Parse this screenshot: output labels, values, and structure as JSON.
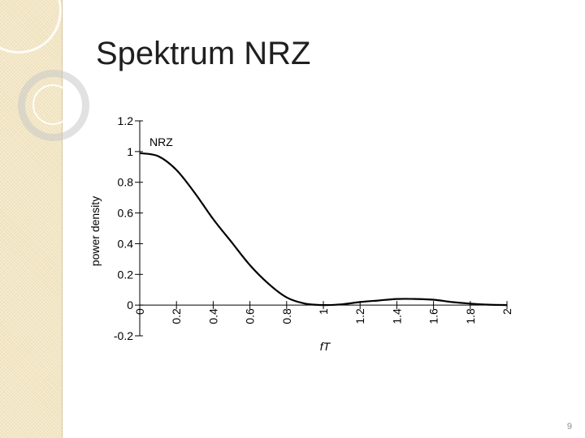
{
  "slide": {
    "title": "Spektrum NRZ",
    "page_number": "9"
  },
  "chart_data": {
    "type": "line",
    "xlabel": "fT",
    "ylabel": "power density",
    "xlim": [
      0,
      2
    ],
    "ylim": [
      -0.2,
      1.2
    ],
    "x_ticks": [
      "0",
      "0.2",
      "0.4",
      "0.6",
      "0.8",
      "1",
      "1.2",
      "1.4",
      "1.6",
      "1.8",
      "2"
    ],
    "y_ticks": [
      "-0.2",
      "0",
      "0.2",
      "0.4",
      "0.6",
      "0.8",
      "1",
      "1.2"
    ],
    "grid": false,
    "series": [
      {
        "name": "NRZ",
        "x": [
          0,
          0.1,
          0.2,
          0.3,
          0.4,
          0.5,
          0.6,
          0.7,
          0.8,
          0.9,
          1.0,
          1.1,
          1.2,
          1.3,
          1.4,
          1.5,
          1.6,
          1.7,
          1.8,
          1.9,
          2.0
        ],
        "y": [
          0.99,
          0.97,
          0.88,
          0.73,
          0.56,
          0.41,
          0.26,
          0.14,
          0.05,
          0.01,
          0.0,
          0.005,
          0.02,
          0.03,
          0.04,
          0.04,
          0.035,
          0.02,
          0.01,
          0.003,
          0.0
        ]
      }
    ],
    "color": "#000000"
  }
}
